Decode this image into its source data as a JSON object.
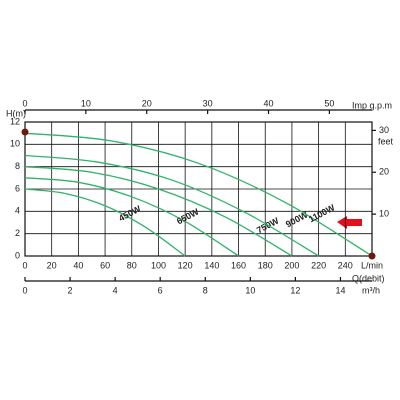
{
  "chart_data": {
    "type": "line",
    "y_label": "H(m)",
    "x_label": "L/min",
    "x_title": "Q(debit)",
    "xlim": [
      0,
      260
    ],
    "xticks": [
      0,
      20,
      40,
      60,
      80,
      100,
      120,
      140,
      160,
      180,
      200,
      220,
      240
    ],
    "ylim": [
      0,
      12
    ],
    "yticks": [
      0,
      2,
      4,
      6,
      8,
      10,
      12
    ],
    "y2_label": "feet",
    "y2lim": [
      0,
      32
    ],
    "y2ticks": [
      10,
      20,
      30
    ],
    "top_axis": {
      "label": "Imp g.p.m",
      "lim": [
        0,
        57
      ],
      "ticks": [
        0,
        10,
        20,
        30,
        40,
        50
      ]
    },
    "bottom_axis": {
      "label": "m³/h",
      "lim": [
        0,
        15.4
      ],
      "ticks": [
        0,
        2,
        4,
        6,
        8,
        10,
        12,
        14
      ]
    },
    "grid": true,
    "series": [
      {
        "name": "450W",
        "color": "#2fb36a",
        "x": [
          0,
          30,
          60,
          90,
          120
        ],
        "values": [
          6,
          5.6,
          4.5,
          2.6,
          0
        ]
      },
      {
        "name": "650W",
        "color": "#2fb36a",
        "x": [
          0,
          40,
          80,
          120,
          160
        ],
        "values": [
          7,
          6.6,
          5.3,
          3.1,
          0
        ]
      },
      {
        "name": "750W",
        "color": "#2fb36a",
        "x": [
          0,
          50,
          100,
          150,
          200
        ],
        "values": [
          8,
          7.5,
          6,
          3.5,
          0
        ]
      },
      {
        "name": "900W",
        "color": "#2fb36a",
        "x": [
          0,
          55,
          110,
          165,
          220
        ],
        "values": [
          9,
          8.4,
          6.8,
          3.9,
          0
        ]
      },
      {
        "name": "1100W",
        "color": "#2fb36a",
        "x": [
          0,
          65,
          130,
          195,
          260
        ],
        "values": [
          11,
          10.3,
          8.3,
          4.8,
          0
        ]
      }
    ]
  }
}
